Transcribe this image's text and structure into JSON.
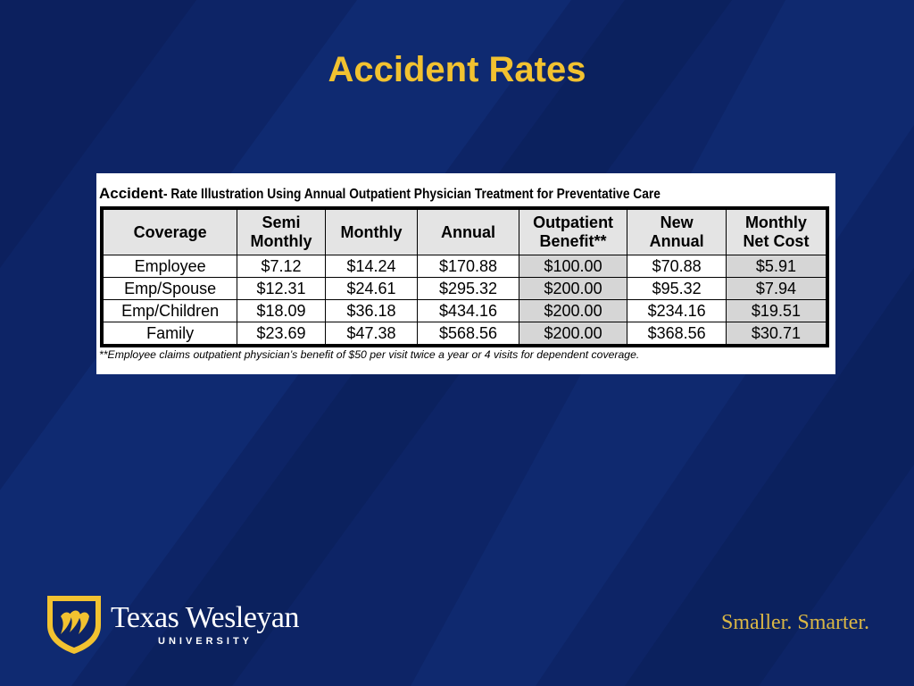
{
  "slide": {
    "title": "Accident Rates"
  },
  "table": {
    "caption_lead": "Accident",
    "caption_rest": " - Rate Illustration Using Annual Outpatient Physician Treatment for Preventative Care",
    "headers": {
      "coverage": "Coverage",
      "semi_monthly_1": "Semi",
      "semi_monthly_2": "Monthly",
      "monthly": "Monthly",
      "annual": "Annual",
      "outpatient_1": "Outpatient",
      "outpatient_2": "Benefit**",
      "new_annual_1": "New",
      "new_annual_2": "Annual",
      "net_cost_1": "Monthly",
      "net_cost_2": "Net Cost"
    },
    "rows": [
      {
        "coverage": "Employee",
        "semi_monthly": "$7.12",
        "monthly": "$14.24",
        "annual": "$170.88",
        "outpatient": "$100.00",
        "new_annual": "$70.88",
        "net_cost": "$5.91"
      },
      {
        "coverage": "Emp/Spouse",
        "semi_monthly": "$12.31",
        "monthly": "$24.61",
        "annual": "$295.32",
        "outpatient": "$200.00",
        "new_annual": "$95.32",
        "net_cost": "$7.94"
      },
      {
        "coverage": "Emp/Children",
        "semi_monthly": "$18.09",
        "monthly": "$36.18",
        "annual": "$434.16",
        "outpatient": "$200.00",
        "new_annual": "$234.16",
        "net_cost": "$19.51"
      },
      {
        "coverage": "Family",
        "semi_monthly": "$23.69",
        "monthly": "$47.38",
        "annual": "$568.56",
        "outpatient": "$200.00",
        "new_annual": "$368.56",
        "net_cost": "$30.71"
      }
    ],
    "footnote": "**Employee claims outpatient physician’s benefit of $50 per visit twice a year or 4 visits for dependent coverage."
  },
  "footer": {
    "logo_name": "Texas Wesleyan",
    "logo_sub": "UNIVERSITY",
    "tagline": "Smaller. Smarter."
  },
  "colors": {
    "background": "#0d2466",
    "title": "#f2c230",
    "tagline": "#d9b645",
    "shield_gold": "#f2c230"
  },
  "icons": {
    "shield": "shield-icon"
  }
}
